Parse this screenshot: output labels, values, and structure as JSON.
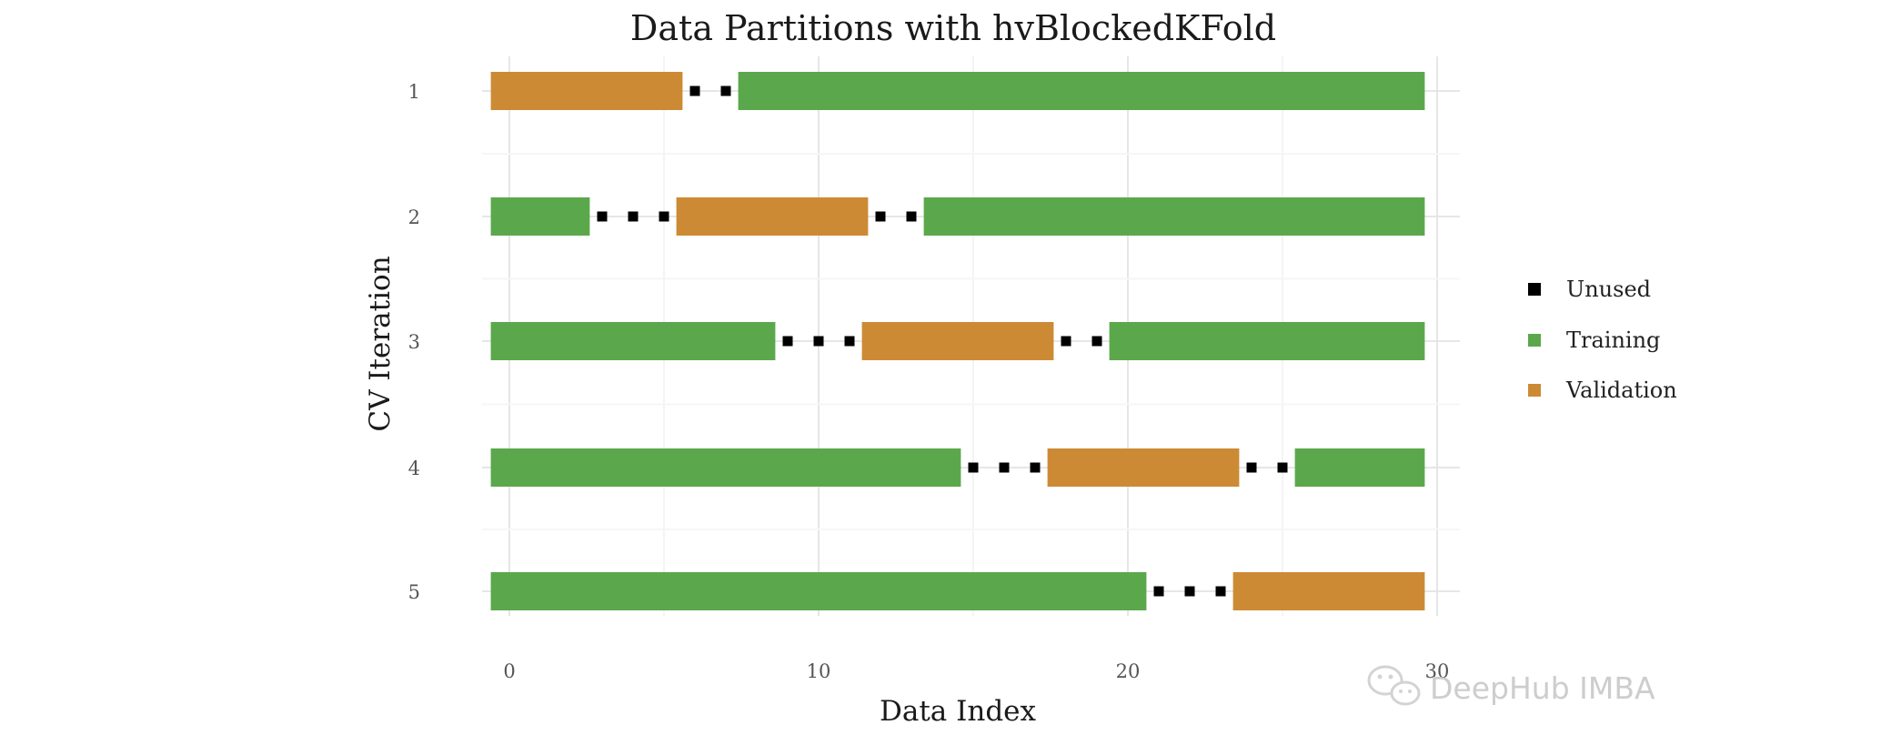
{
  "chart_data": {
    "type": "bar",
    "title": "Data Partitions with hvBlockedKFold",
    "xlabel": "Data Index",
    "ylabel": "CV Iteration",
    "xlim": [
      -0.6,
      30.4
    ],
    "x_ticks": [
      0,
      10,
      20,
      30
    ],
    "y_categories": [
      "1",
      "2",
      "3",
      "4",
      "5"
    ],
    "grid": true,
    "legend_position": "right",
    "legend": [
      {
        "key": "unused",
        "label": "Unused",
        "color": "#000000",
        "shape": "square"
      },
      {
        "key": "training",
        "label": "Training",
        "color": "#5ba84c",
        "shape": "bar"
      },
      {
        "key": "validation",
        "label": "Validation",
        "color": "#cd8a35",
        "shape": "bar"
      }
    ],
    "iterations": [
      {
        "iteration": "1",
        "segments": [
          {
            "type": "validation",
            "start": 0,
            "end": 5
          },
          {
            "type": "unused",
            "start": 6,
            "end": 7
          },
          {
            "type": "training",
            "start": 8,
            "end": 29
          }
        ]
      },
      {
        "iteration": "2",
        "segments": [
          {
            "type": "training",
            "start": 0,
            "end": 2
          },
          {
            "type": "unused",
            "start": 3,
            "end": 5
          },
          {
            "type": "validation",
            "start": 6,
            "end": 11
          },
          {
            "type": "unused",
            "start": 12,
            "end": 13
          },
          {
            "type": "training",
            "start": 14,
            "end": 29
          }
        ]
      },
      {
        "iteration": "3",
        "segments": [
          {
            "type": "training",
            "start": 0,
            "end": 8
          },
          {
            "type": "unused",
            "start": 9,
            "end": 11
          },
          {
            "type": "validation",
            "start": 12,
            "end": 17
          },
          {
            "type": "unused",
            "start": 18,
            "end": 19
          },
          {
            "type": "training",
            "start": 20,
            "end": 29
          }
        ]
      },
      {
        "iteration": "4",
        "segments": [
          {
            "type": "training",
            "start": 0,
            "end": 14
          },
          {
            "type": "unused",
            "start": 15,
            "end": 17
          },
          {
            "type": "validation",
            "start": 18,
            "end": 23
          },
          {
            "type": "unused",
            "start": 24,
            "end": 25
          },
          {
            "type": "training",
            "start": 26,
            "end": 29
          }
        ]
      },
      {
        "iteration": "5",
        "segments": [
          {
            "type": "training",
            "start": 0,
            "end": 20
          },
          {
            "type": "unused",
            "start": 21,
            "end": 23
          },
          {
            "type": "validation",
            "start": 24,
            "end": 29
          }
        ]
      }
    ]
  },
  "watermark": {
    "text": "DeepHub IMBA",
    "icon": "wechat-icon"
  }
}
